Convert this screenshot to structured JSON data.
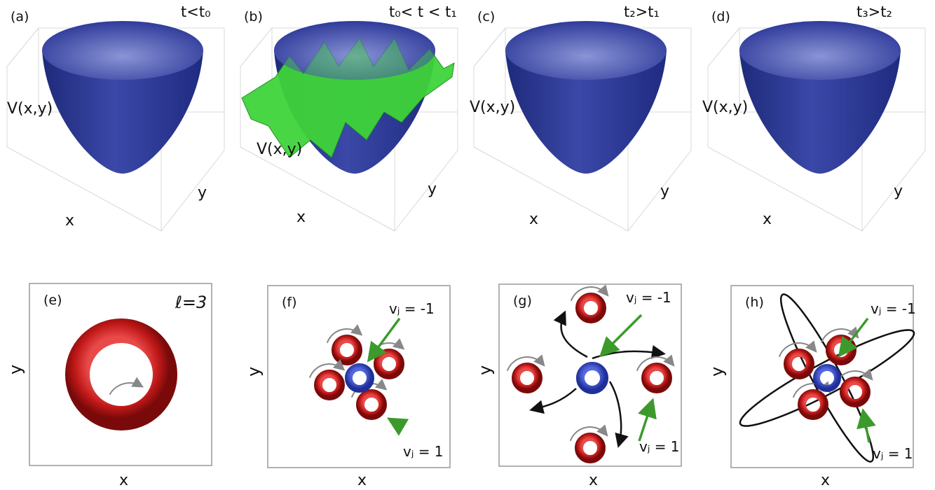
{
  "top_panels": [
    {
      "label": "(a)",
      "time": "t<t₀",
      "potential": "V(x,y)",
      "x_axis": "x",
      "y_axis": "y"
    },
    {
      "label": "(b)",
      "time": "t₀< t < t₁",
      "potential": "V(x,y)",
      "x_axis": "x",
      "y_axis": "y"
    },
    {
      "label": "(c)",
      "time": "t₂>t₁",
      "potential": "V(x,y)",
      "x_axis": "x",
      "y_axis": "y"
    },
    {
      "label": "(d)",
      "time": "t₃>t₂",
      "potential": "V(x,y)",
      "x_axis": "x",
      "y_axis": "y"
    }
  ],
  "bottom_panels": [
    {
      "label": "(e)",
      "charge": "ℓ=3",
      "x_axis": "x",
      "y_axis": "y"
    },
    {
      "label": "(f)",
      "vortex_labels": [
        "vⱼ = -1",
        "vⱼ = 1"
      ],
      "x_axis": "x",
      "y_axis": "y"
    },
    {
      "label": "(g)",
      "vortex_labels": [
        "vⱼ = -1",
        "vⱼ = 1"
      ],
      "x_axis": "x",
      "y_axis": "y"
    },
    {
      "label": "(h)",
      "vortex_labels": [
        "vⱼ = -1",
        "vⱼ = 1"
      ],
      "x_axis": "x",
      "y_axis": "y"
    }
  ]
}
